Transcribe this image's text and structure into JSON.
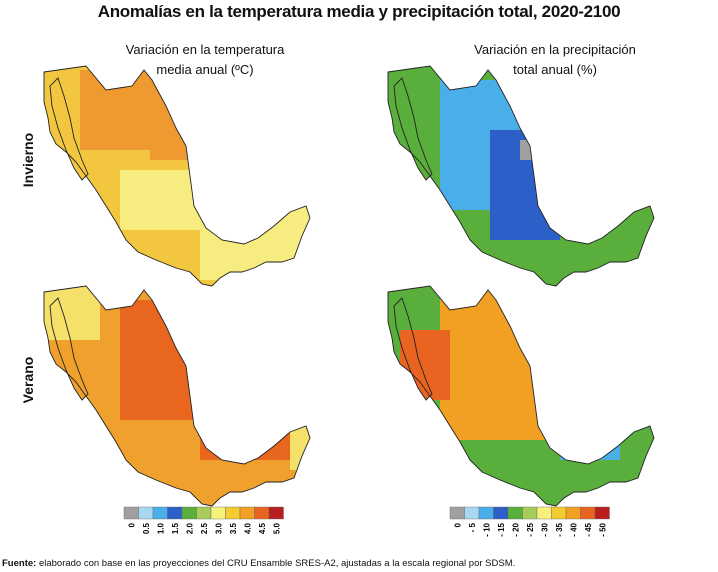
{
  "title": "Anomalías en la temperatura media y precipitación total, 2020-2100",
  "columns": {
    "left": {
      "line1": "Variación en la temperatura",
      "line2": "media anual (ºC)"
    },
    "right": {
      "line1": "Variación en la precipitación",
      "line2": "total anual (%)"
    }
  },
  "rows": {
    "winter": "Invierno",
    "summer": "Verano"
  },
  "legend_temperature": {
    "labels": [
      "0",
      "0.5",
      "1.0",
      "1.5",
      "2.0",
      "2.5",
      "3.0",
      "3.5",
      "4.0",
      "4.5",
      "5.0"
    ],
    "colors": [
      "#a0a0a0",
      "#a8d8f0",
      "#4aaee8",
      "#2c5fc8",
      "#5aae3c",
      "#a6cd5a",
      "#f7f17c",
      "#f5cc30",
      "#f2a024",
      "#e86420",
      "#b81e1e"
    ]
  },
  "legend_precipitation": {
    "labels": [
      "0",
      "- 5",
      "- 10",
      "- 15",
      "- 20",
      "- 25",
      "- 30",
      "- 35",
      "- 40",
      "- 45",
      "- 50"
    ],
    "colors": [
      "#a0a0a0",
      "#a8d8f0",
      "#4aaee8",
      "#2c5fc8",
      "#5aae3c",
      "#a6cd5a",
      "#f7f17c",
      "#f5cc30",
      "#f2a024",
      "#e86420",
      "#b81e1e"
    ]
  },
  "maps": {
    "temp_winter": {
      "base": "#f3c640",
      "accent": "#ef9a30",
      "accent2": "#f7ec80"
    },
    "precip_winter": {
      "base": "#5aae3c",
      "accent": "#4aaee8",
      "accent2": "#2c5fc8"
    },
    "temp_summer": {
      "base": "#f0a02c",
      "accent": "#e8661e",
      "accent2": "#f5e06a"
    },
    "precip_summer": {
      "base": "#5aae3c",
      "accent": "#f2a024",
      "accent2": "#4aaee8"
    }
  },
  "footer": {
    "label": "Fuente:",
    "text": " elaborado con base en las proyecciones del CRU Ensamble SRES-A2, ajustadas a la escala regional por SDSM."
  }
}
